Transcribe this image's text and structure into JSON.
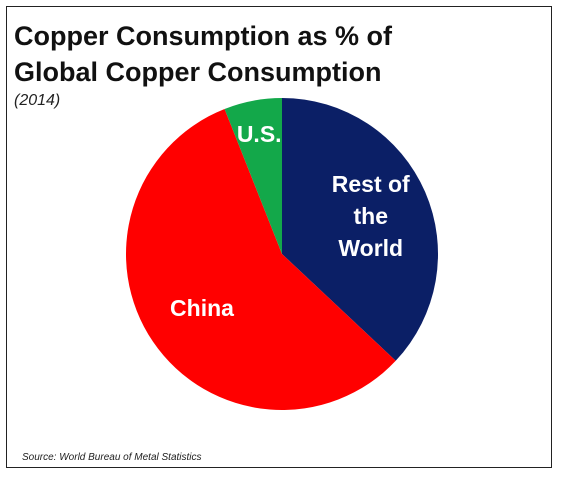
{
  "chart_data": {
    "type": "pie",
    "title": "Copper Consumption as % of Global Copper Consumption",
    "subtitle": "(2014)",
    "source": "Source: World Bureau of Metal Statistics",
    "categories": [
      "Rest of the World",
      "China",
      "U.S."
    ],
    "values": [
      37,
      57,
      6
    ],
    "colors": [
      "#0b1f66",
      "#ff0000",
      "#13a84a"
    ]
  }
}
